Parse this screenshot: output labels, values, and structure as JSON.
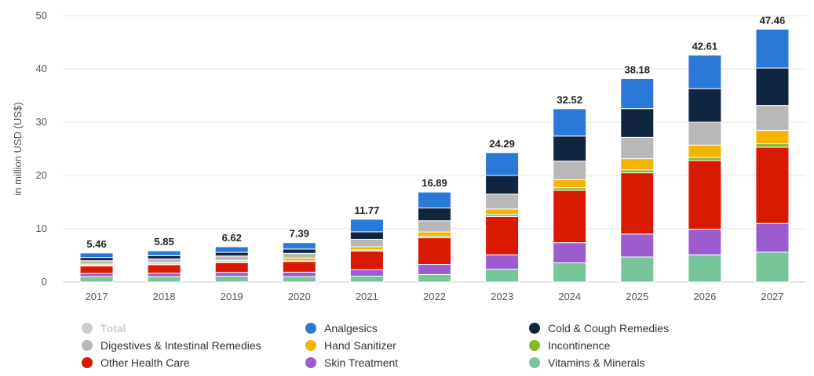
{
  "chart_data": {
    "type": "bar",
    "stacked": true,
    "ylabel": "in million USD (US$)",
    "ylim": [
      0,
      50
    ],
    "yticks": [
      0,
      10,
      20,
      30,
      40,
      50
    ],
    "grid": true,
    "legend_position": "bottom",
    "categories": [
      "2017",
      "2018",
      "2019",
      "2020",
      "2021",
      "2022",
      "2023",
      "2024",
      "2025",
      "2026",
      "2027"
    ],
    "totals": [
      5.46,
      5.85,
      6.62,
      7.39,
      11.77,
      16.89,
      24.29,
      32.52,
      38.18,
      42.61,
      47.46
    ],
    "total_labels": [
      "5.46",
      "5.85",
      "6.62",
      "7.39",
      "11.77",
      "16.89",
      "24.29",
      "32.52",
      "38.18",
      "42.61",
      "47.46"
    ],
    "series": [
      {
        "name": "Vitamins & Minerals",
        "color": "#76c69a",
        "values": [
          1.0,
          1.0,
          1.1,
          1.0,
          1.1,
          1.4,
          2.4,
          3.6,
          4.7,
          5.1,
          5.6
        ]
      },
      {
        "name": "Skin Treatment",
        "color": "#9b5ccf",
        "values": [
          0.6,
          0.65,
          0.7,
          0.85,
          1.2,
          1.9,
          2.7,
          3.8,
          4.3,
          4.8,
          5.4
        ]
      },
      {
        "name": "Other Health Care",
        "color": "#d91a00",
        "values": [
          1.4,
          1.6,
          1.85,
          2.0,
          3.5,
          5.0,
          7.2,
          9.8,
          11.5,
          12.9,
          14.3
        ]
      },
      {
        "name": "Incontinence",
        "color": "#8ab82a",
        "values": [
          0.12,
          0.12,
          0.13,
          0.14,
          0.22,
          0.3,
          0.4,
          0.5,
          0.55,
          0.6,
          0.65
        ]
      },
      {
        "name": "Hand Sanitizer",
        "color": "#f5b400",
        "values": [
          0.24,
          0.26,
          0.3,
          0.5,
          0.6,
          0.8,
          1.0,
          1.5,
          2.1,
          2.3,
          2.5
        ]
      },
      {
        "name": "Digestives & Intestinal Remedies",
        "color": "#b8b8b8",
        "values": [
          0.65,
          0.7,
          0.8,
          0.9,
          1.4,
          2.1,
          2.8,
          3.5,
          4.0,
          4.3,
          4.7
        ]
      },
      {
        "name": "Cold & Cough Remedies",
        "color": "#0f2540",
        "values": [
          0.6,
          0.62,
          0.7,
          0.8,
          1.4,
          2.4,
          3.5,
          4.7,
          5.4,
          6.3,
          7.0
        ]
      },
      {
        "name": "Analgesics",
        "color": "#2a78d7",
        "values": [
          0.85,
          0.9,
          1.04,
          1.2,
          2.35,
          2.99,
          4.29,
          5.12,
          5.63,
          6.31,
          7.31
        ]
      }
    ]
  },
  "legend": [
    {
      "name": "Total",
      "color": "#cccccc",
      "disabled": true
    },
    {
      "name": "Analgesics",
      "color": "#2a78d7"
    },
    {
      "name": "Cold & Cough Remedies",
      "color": "#0f2540"
    },
    {
      "name": "Digestives & Intestinal Remedies",
      "color": "#b8b8b8"
    },
    {
      "name": "Hand Sanitizer",
      "color": "#f5b400"
    },
    {
      "name": "Incontinence",
      "color": "#8ab82a"
    },
    {
      "name": "Other Health Care",
      "color": "#d91a00"
    },
    {
      "name": "Skin Treatment",
      "color": "#9b5ccf"
    },
    {
      "name": "Vitamins & Minerals",
      "color": "#76c69a"
    }
  ]
}
